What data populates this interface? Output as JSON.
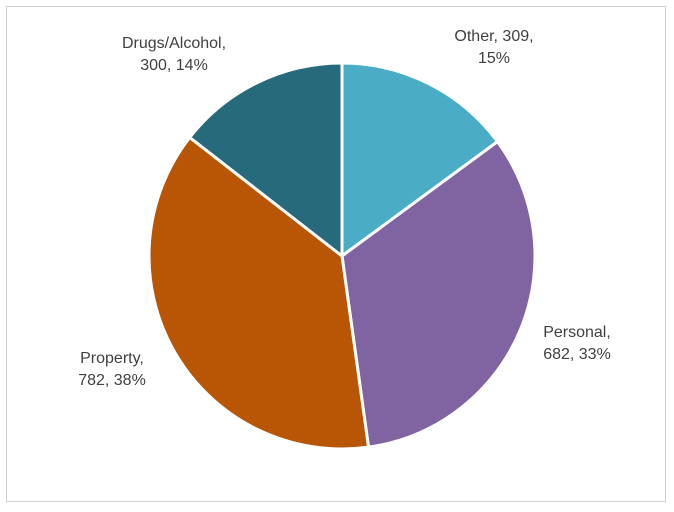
{
  "chart_data": {
    "type": "pie",
    "slices": [
      {
        "category": "Other",
        "value": 309,
        "percent": 15,
        "color": "#4bacc6",
        "label_lines": [
          "Other, 309,",
          "15%"
        ]
      },
      {
        "category": "Personal",
        "value": 682,
        "percent": 33,
        "color": "#8064a2",
        "label_lines": [
          "Personal,",
          "682, 33%"
        ]
      },
      {
        "category": "Property",
        "value": 782,
        "percent": 38,
        "color": "#b85605",
        "label_lines": [
          "Property,",
          "782, 38%"
        ]
      },
      {
        "category": "Drugs/Alcohol",
        "value": 300,
        "percent": 14,
        "color": "#276a7c",
        "label_lines": [
          "Drugs/Alcohol,",
          "300, 14%"
        ]
      }
    ],
    "start": "12 o'clock",
    "direction": "clockwise",
    "legend": "none"
  }
}
